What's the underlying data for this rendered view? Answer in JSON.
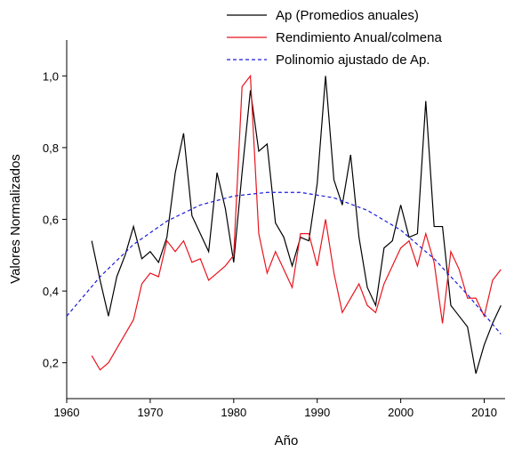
{
  "chart_data": {
    "type": "line",
    "x_label": "Año",
    "y_label": "Valores Normalizados",
    "x": [
      1963,
      1964,
      1965,
      1966,
      1967,
      1968,
      1969,
      1970,
      1971,
      1972,
      1973,
      1974,
      1975,
      1976,
      1977,
      1978,
      1979,
      1980,
      1981,
      1982,
      1983,
      1984,
      1985,
      1986,
      1987,
      1988,
      1989,
      1990,
      1991,
      1992,
      1993,
      1994,
      1995,
      1996,
      1997,
      1998,
      1999,
      2000,
      2001,
      2002,
      2003,
      2004,
      2005,
      2006,
      2007,
      2008,
      2009,
      2010,
      2011,
      2012
    ],
    "series": [
      {
        "name": "Ap (Promedios anuales)",
        "color": "#000000",
        "dash": false,
        "values": [
          0.54,
          0.43,
          0.33,
          0.44,
          0.5,
          0.58,
          0.49,
          0.51,
          0.48,
          0.55,
          0.73,
          0.84,
          0.61,
          0.56,
          0.51,
          0.73,
          0.63,
          0.48,
          0.73,
          0.96,
          0.79,
          0.81,
          0.59,
          0.55,
          0.47,
          0.55,
          0.54,
          0.7,
          1.0,
          0.71,
          0.64,
          0.78,
          0.55,
          0.41,
          0.36,
          0.52,
          0.54,
          0.64,
          0.55,
          0.56,
          0.93,
          0.58,
          0.58,
          0.36,
          0.33,
          0.3,
          0.17,
          0.25,
          0.31,
          0.36
        ]
      },
      {
        "name": "Rendimiento Anual/colmena",
        "color": "#e8141e",
        "dash": false,
        "values": [
          0.22,
          0.18,
          0.2,
          0.24,
          0.28,
          0.32,
          0.42,
          0.45,
          0.44,
          0.54,
          0.51,
          0.54,
          0.48,
          0.49,
          0.43,
          0.45,
          0.47,
          0.5,
          0.97,
          1.0,
          0.56,
          0.45,
          0.51,
          0.46,
          0.41,
          0.56,
          0.56,
          0.47,
          0.6,
          0.45,
          0.34,
          0.38,
          0.42,
          0.36,
          0.34,
          0.42,
          0.47,
          0.52,
          0.54,
          0.47,
          0.56,
          0.48,
          0.31,
          0.51,
          0.46,
          0.38,
          0.38,
          0.33,
          0.43,
          0.46
        ]
      },
      {
        "name": "Polinomio ajustado de Ap.",
        "color": "#1a1adc",
        "dash": true,
        "x": [
          1960,
          1964,
          1968,
          1972,
          1976,
          1980,
          1984,
          1988,
          1992,
          1996,
          2000,
          2004,
          2008,
          2012
        ],
        "values": [
          0.33,
          0.44,
          0.53,
          0.595,
          0.64,
          0.665,
          0.675,
          0.675,
          0.66,
          0.625,
          0.57,
          0.49,
          0.39,
          0.28
        ]
      }
    ],
    "xlim": [
      1960,
      2012.5
    ],
    "ylim": [
      0.1,
      1.1
    ],
    "xticks": [
      1960,
      1970,
      1980,
      1990,
      2000,
      2010
    ],
    "yticks": [
      {
        "value": 0.2,
        "label": "0,2"
      },
      {
        "value": 0.4,
        "label": "0,4"
      },
      {
        "value": 0.6,
        "label": "0,6"
      },
      {
        "value": 0.8,
        "label": "0,8"
      },
      {
        "value": 1.0,
        "label": "1,0"
      }
    ],
    "legend": "upper right",
    "grid": false
  }
}
